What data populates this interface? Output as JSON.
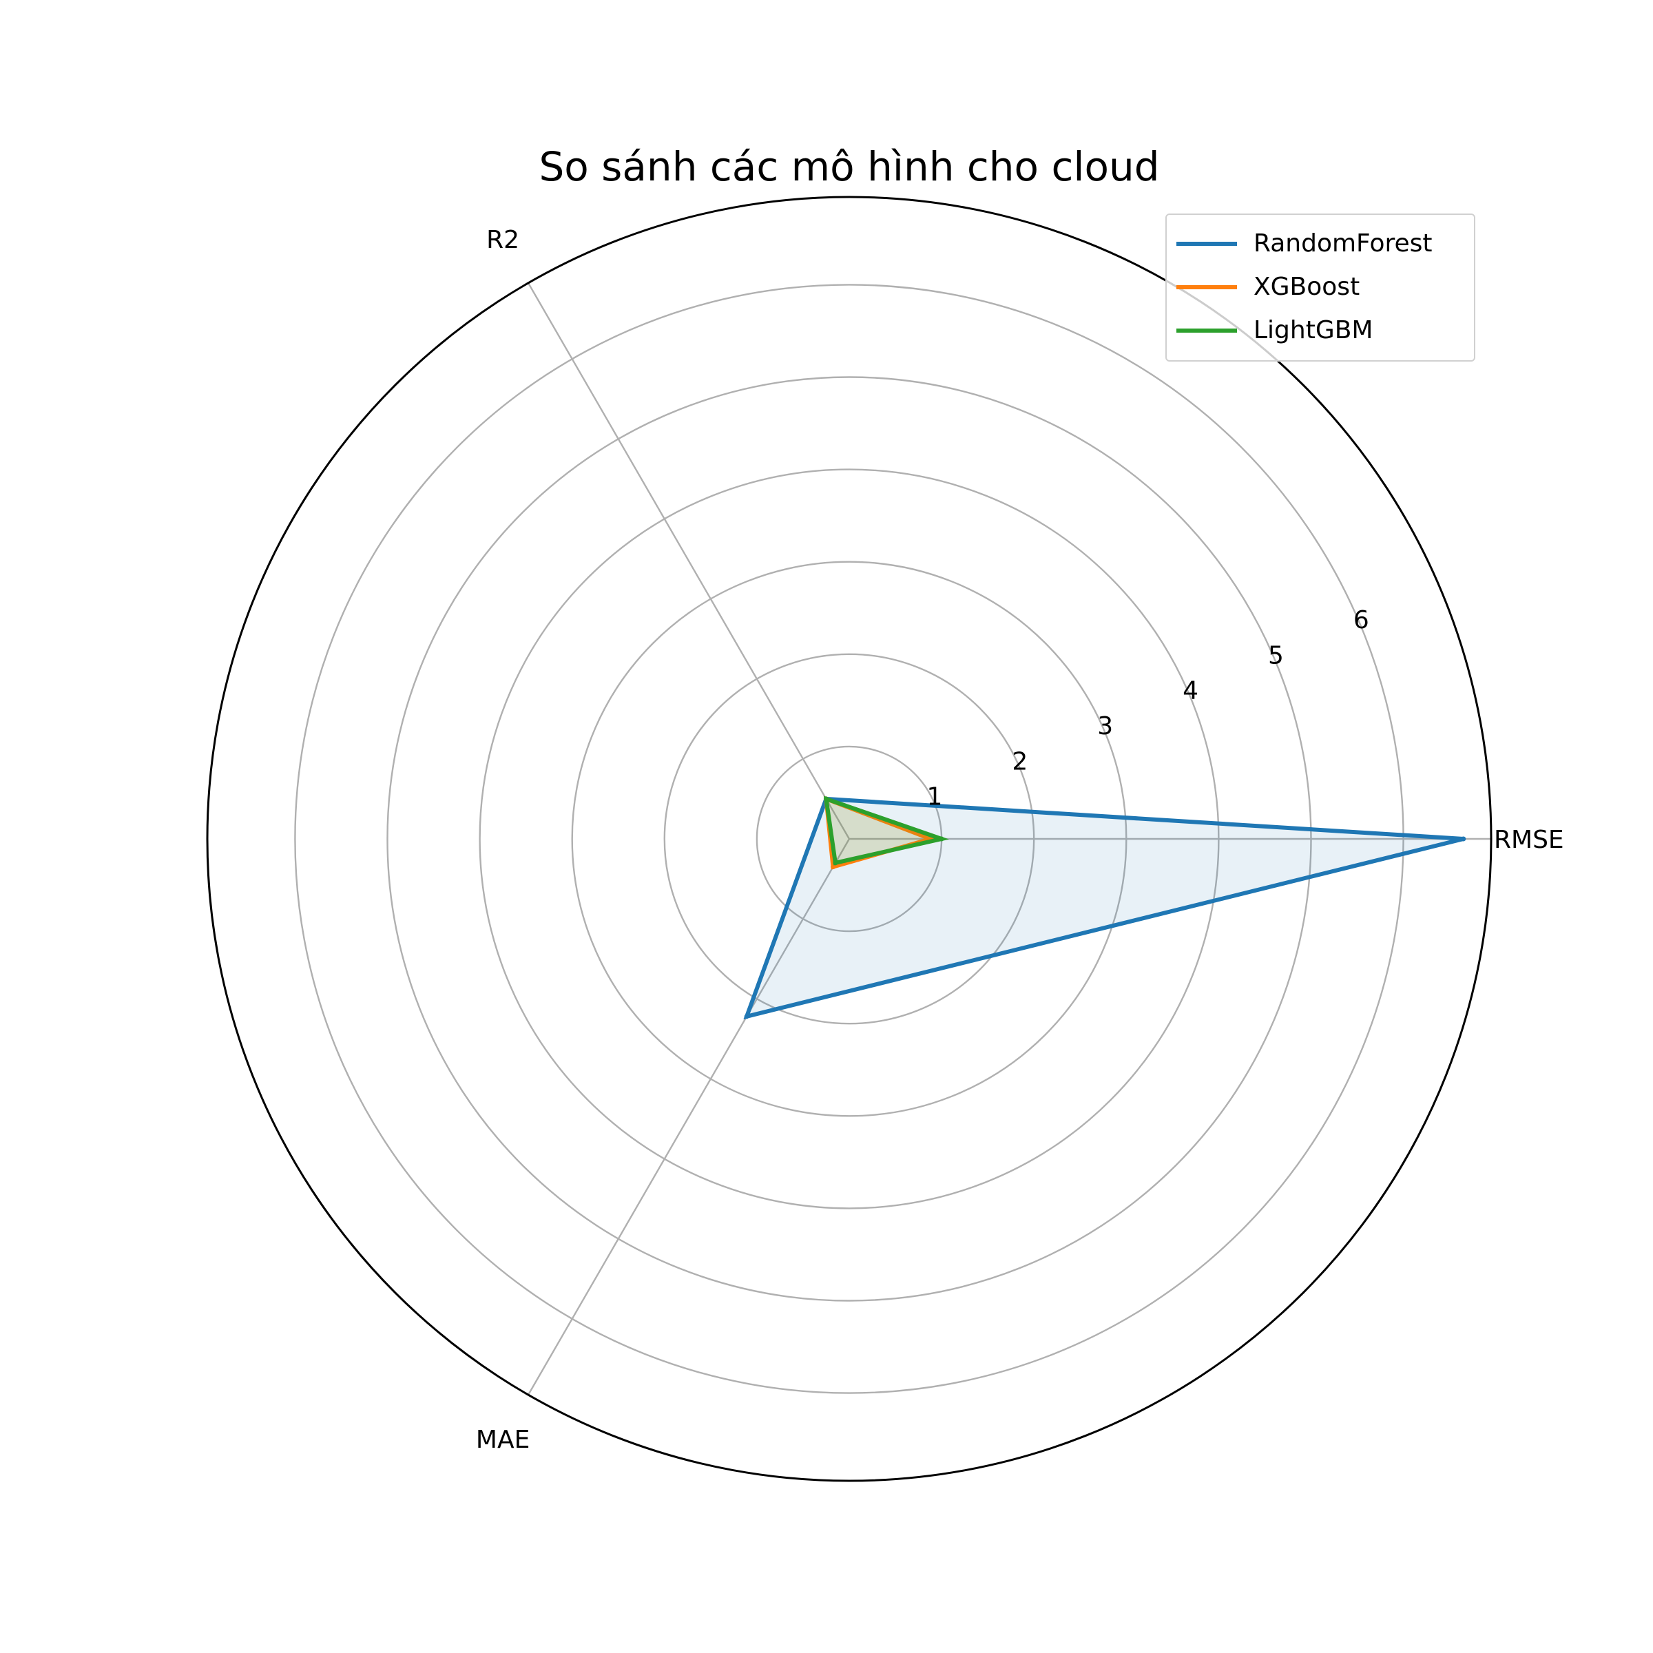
{
  "chart_data": {
    "type": "radar",
    "title": "So sánh các mô hình cho cloud",
    "axes": [
      "RMSE",
      "R2",
      "MAE"
    ],
    "r_ticks": [
      "1",
      "2",
      "3",
      "4",
      "5",
      "6"
    ],
    "r_max": 6.95,
    "grid": true,
    "legend_position": "top-right",
    "series": [
      {
        "name": "RandomForest",
        "color": "#1f77b4",
        "values": [
          6.65,
          0.5,
          2.22
        ]
      },
      {
        "name": "XGBoost",
        "color": "#ff7f0e",
        "values": [
          0.88,
          0.5,
          0.35
        ]
      },
      {
        "name": "LightGBM",
        "color": "#2ca02c",
        "values": [
          1.0,
          0.5,
          0.3
        ]
      }
    ]
  }
}
